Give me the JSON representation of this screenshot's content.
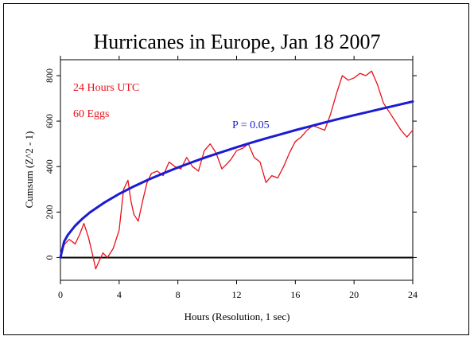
{
  "chart_data": {
    "type": "line",
    "title": "Hurricanes in Europe, Jan 18 2007",
    "xlabel": "Hours (Resolution, 1 sec)",
    "ylabel": "Cumsum (Z^2 - 1)",
    "xlim": [
      0,
      24
    ],
    "ylim": [
      -100,
      870
    ],
    "xticks": [
      0,
      4,
      8,
      12,
      16,
      20,
      24
    ],
    "yticks": [
      0,
      200,
      400,
      600,
      800
    ],
    "grid": false,
    "annotations": {
      "hours": "24 Hours UTC",
      "eggs": "60 Eggs",
      "probability": "P = 0.05"
    },
    "reference_line": {
      "y": 0,
      "color": "#000000"
    },
    "series": [
      {
        "color": "#e8101a",
        "x": [
          0,
          0.3,
          0.6,
          1.0,
          1.3,
          1.6,
          1.9,
          2.2,
          2.4,
          2.6,
          2.9,
          3.2,
          3.6,
          4.0,
          4.3,
          4.6,
          4.8,
          5.0,
          5.3,
          5.6,
          5.9,
          6.2,
          6.6,
          7.0,
          7.4,
          7.8,
          8.2,
          8.6,
          9.0,
          9.4,
          9.8,
          10.2,
          10.6,
          11.0,
          11.3,
          11.6,
          12.0,
          12.4,
          12.8,
          13.2,
          13.6,
          14.0,
          14.4,
          14.8,
          15.2,
          15.6,
          16.0,
          16.4,
          16.8,
          17.2,
          17.6,
          18.0,
          18.4,
          18.8,
          19.2,
          19.6,
          20.0,
          20.4,
          20.8,
          21.2,
          21.6,
          22.0,
          22.4,
          22.8,
          23.2,
          23.6,
          24.0
        ],
        "values": [
          20,
          60,
          80,
          60,
          100,
          150,
          90,
          10,
          -50,
          -20,
          20,
          0,
          40,
          120,
          300,
          340,
          250,
          190,
          160,
          250,
          330,
          370,
          380,
          360,
          420,
          400,
          390,
          440,
          400,
          380,
          470,
          500,
          460,
          390,
          410,
          430,
          470,
          480,
          500,
          440,
          420,
          330,
          360,
          350,
          400,
          460,
          510,
          530,
          560,
          580,
          570,
          560,
          630,
          720,
          800,
          780,
          790,
          810,
          800,
          820,
          760,
          680,
          640,
          600,
          560,
          530,
          560
        ]
      },
      {
        "name": "P = 0.05",
        "color": "#1b1bd4",
        "x": [
          0,
          0.25,
          0.5,
          1,
          1.5,
          2,
          3,
          4,
          5,
          6,
          7,
          8,
          9,
          10,
          11,
          12,
          13,
          14,
          15,
          16,
          17,
          18,
          19,
          20,
          21,
          22,
          23,
          24
        ],
        "values": [
          0,
          70,
          99,
          140,
          171,
          198,
          242,
          280,
          313,
          343,
          370,
          396,
          420,
          443,
          464,
          485,
          505,
          524,
          542,
          560,
          577,
          594,
          610,
          626,
          641,
          656,
          671,
          686
        ]
      }
    ]
  }
}
